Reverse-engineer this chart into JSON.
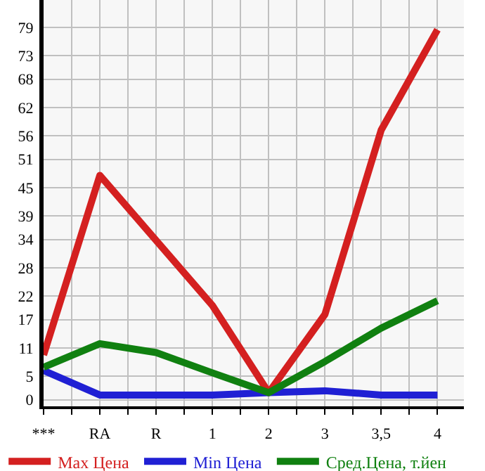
{
  "chart_data": {
    "type": "line",
    "categories": [
      "***",
      "RA",
      "R",
      "1",
      "2",
      "3",
      "3,5",
      "4"
    ],
    "series": [
      {
        "name": "Max Цена",
        "color": "#d42020",
        "values": [
          9.5,
          47.6,
          33.8,
          20,
          1.5,
          18.1,
          57.2,
          78.5
        ]
      },
      {
        "name": "Min Цена",
        "color": "#2020d4",
        "values": [
          6.2,
          1,
          1,
          1,
          1.5,
          1.9,
          1,
          1
        ]
      },
      {
        "name": "Сред.Цена, т.йен",
        "color": "#108010",
        "values": [
          6.9,
          11.9,
          10,
          5.7,
          1.5,
          8.1,
          15.2,
          21
        ]
      }
    ],
    "ylim": [
      -1.4,
      84.8
    ],
    "yticks": [
      0,
      5,
      11,
      17,
      22,
      28,
      34,
      39,
      45,
      51,
      56,
      62,
      68,
      73,
      79
    ],
    "grid": true,
    "legend": "bottom",
    "marker": "none",
    "line_style": "solid"
  }
}
